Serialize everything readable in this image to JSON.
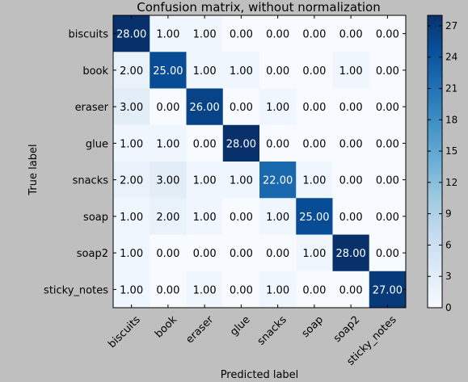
{
  "chart_data": {
    "type": "heatmap",
    "title": "Confusion matrix, without normalization",
    "xlabel": "Predicted label",
    "ylabel": "True label",
    "x_categories": [
      "biscuits",
      "book",
      "eraser",
      "glue",
      "snacks",
      "soap",
      "soap2",
      "sticky_notes"
    ],
    "y_categories": [
      "biscuits",
      "book",
      "eraser",
      "glue",
      "snacks",
      "soap",
      "soap2",
      "sticky_notes"
    ],
    "matrix": [
      [
        28,
        1,
        1,
        0,
        0,
        0,
        0,
        0
      ],
      [
        2,
        25,
        1,
        1,
        0,
        0,
        1,
        0
      ],
      [
        3,
        0,
        26,
        0,
        1,
        0,
        0,
        0
      ],
      [
        1,
        1,
        0,
        28,
        0,
        0,
        0,
        0
      ],
      [
        2,
        3,
        1,
        1,
        22,
        1,
        0,
        0
      ],
      [
        1,
        2,
        1,
        0,
        1,
        25,
        0,
        0
      ],
      [
        1,
        0,
        0,
        0,
        0,
        1,
        28,
        0
      ],
      [
        1,
        0,
        1,
        0,
        1,
        0,
        0,
        27
      ]
    ],
    "value_format": "2 decimals",
    "colormap": "Blues",
    "colorbar": {
      "min": 0,
      "max": 28,
      "ticks": [
        0,
        3,
        6,
        9,
        12,
        15,
        18,
        21,
        24,
        27
      ]
    },
    "text_color_light": "#ffffff",
    "text_color_dark": "#000000"
  }
}
